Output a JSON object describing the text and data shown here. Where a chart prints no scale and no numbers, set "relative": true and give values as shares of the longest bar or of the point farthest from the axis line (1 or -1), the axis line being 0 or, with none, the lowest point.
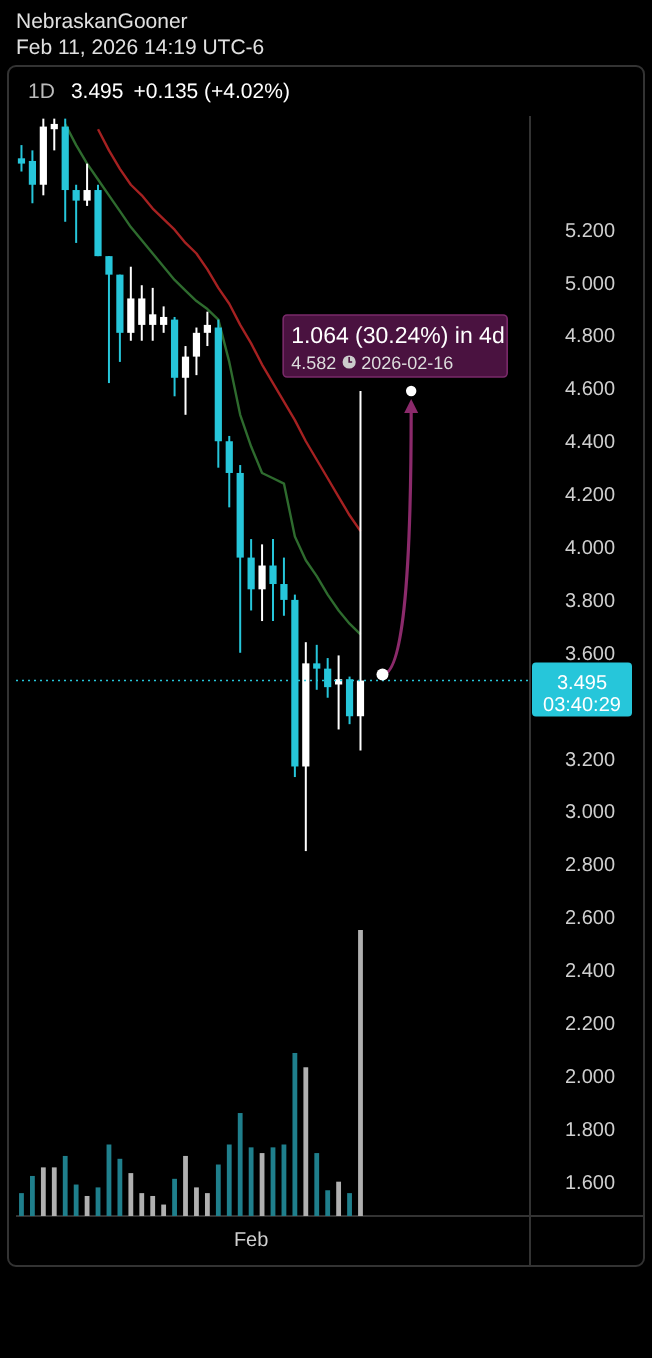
{
  "chart_data": [
    {
      "type": "candlestick",
      "title": "NebraskanGooner",
      "subtitle": "Feb 11, 2026 14:19 UTC-6",
      "categories": [
        null,
        null,
        null,
        null,
        null,
        null,
        null,
        null,
        null,
        null,
        null,
        null,
        null,
        null,
        null,
        null,
        null,
        null,
        null,
        null,
        null,
        "Feb",
        null,
        null,
        null,
        null,
        null,
        null,
        null,
        null,
        null,
        null,
        null,
        null,
        null,
        null,
        null,
        null,
        null,
        null,
        null,
        null,
        null,
        null,
        null,
        null,
        null
      ],
      "ohlc": [
        [
          5.47,
          5.52,
          5.42,
          5.45
        ],
        [
          5.46,
          5.5,
          5.3,
          5.37
        ],
        [
          5.37,
          5.62,
          5.33,
          5.59
        ],
        [
          5.58,
          5.62,
          5.5,
          5.6
        ],
        [
          5.59,
          5.62,
          5.23,
          5.35
        ],
        [
          5.35,
          5.37,
          5.15,
          5.31
        ],
        [
          5.31,
          5.45,
          5.29,
          5.35
        ],
        [
          5.35,
          5.37,
          5.1,
          5.1
        ],
        [
          5.1,
          5.1,
          4.62,
          5.03
        ],
        [
          5.03,
          5.03,
          4.7,
          4.81
        ],
        [
          4.81,
          5.06,
          4.78,
          4.94
        ],
        [
          4.84,
          4.99,
          4.78,
          4.94
        ],
        [
          4.84,
          4.98,
          4.78,
          4.88
        ],
        [
          4.84,
          4.91,
          4.81,
          4.87
        ],
        [
          4.86,
          4.87,
          4.57,
          4.64
        ],
        [
          4.64,
          4.76,
          4.5,
          4.72
        ],
        [
          4.72,
          4.83,
          4.65,
          4.81
        ],
        [
          4.81,
          4.89,
          4.76,
          4.84
        ],
        [
          4.83,
          4.86,
          4.3,
          4.4
        ],
        [
          4.4,
          4.42,
          4.15,
          4.28
        ],
        [
          4.28,
          4.31,
          3.6,
          3.96
        ],
        [
          3.96,
          4.03,
          3.76,
          3.84
        ],
        [
          3.84,
          4.01,
          3.72,
          3.93
        ],
        [
          3.93,
          4.03,
          3.72,
          3.86
        ],
        [
          3.86,
          3.96,
          3.74,
          3.8
        ],
        [
          3.8,
          3.82,
          3.13,
          3.17
        ],
        [
          3.17,
          3.64,
          2.85,
          3.56
        ],
        [
          3.56,
          3.63,
          3.46,
          3.54
        ],
        [
          3.54,
          3.58,
          3.43,
          3.47
        ],
        [
          3.48,
          3.59,
          3.31,
          3.5
        ],
        [
          3.5,
          3.51,
          3.33,
          3.36
        ],
        [
          3.36,
          4.59,
          3.23,
          3.495
        ],
        null,
        null,
        null,
        null,
        null,
        null,
        null,
        null,
        null,
        null,
        null,
        null,
        null,
        null,
        null
      ],
      "colors": [
        "#26c6da",
        "#26c6da",
        "#ffffff",
        "#ffffff",
        "#26c6da",
        "#26c6da",
        "#ffffff",
        "#26c6da",
        "#26c6da",
        "#26c6da",
        "#ffffff",
        "#ffffff",
        "#ffffff",
        "#ffffff",
        "#26c6da",
        "#ffffff",
        "#ffffff",
        "#ffffff",
        "#26c6da",
        "#26c6da",
        "#26c6da",
        "#26c6da",
        "#ffffff",
        "#26c6da",
        "#26c6da",
        "#26c6da",
        "#ffffff",
        "#26c6da",
        "#26c6da",
        "#ffffff",
        "#26c6da",
        "#ffffff",
        null,
        null,
        null,
        null,
        null,
        null,
        null,
        null,
        null,
        null,
        null,
        null,
        null,
        null,
        null
      ],
      "series": [
        {
          "type": "line",
          "color": "#2e6b2e",
          "values": [
            null,
            null,
            null,
            null,
            5.6,
            5.52,
            5.45,
            5.39,
            5.33,
            5.27,
            5.21,
            5.16,
            5.11,
            5.06,
            5.01,
            4.97,
            4.93,
            4.9,
            4.86,
            4.7,
            4.5,
            4.38,
            4.28,
            4.26,
            4.24,
            4.04,
            3.95,
            3.89,
            3.82,
            3.76,
            3.71,
            3.67,
            null,
            null,
            null,
            null,
            null,
            null,
            null,
            null,
            null,
            null,
            null,
            null,
            null,
            null,
            null
          ]
        },
        {
          "type": "line",
          "color": "#a52121",
          "values": [
            null,
            null,
            null,
            null,
            null,
            null,
            null,
            5.58,
            5.5,
            5.43,
            5.37,
            5.33,
            5.28,
            5.24,
            5.2,
            5.15,
            5.11,
            5.05,
            4.98,
            4.92,
            4.84,
            4.77,
            4.69,
            4.62,
            4.55,
            4.48,
            4.4,
            4.33,
            4.26,
            4.19,
            4.12,
            4.06,
            null,
            null,
            null,
            null,
            null,
            null,
            null,
            null,
            null,
            null,
            null,
            null,
            null,
            null,
            null
          ]
        }
      ],
      "ylim": [
        1.47,
        5.63
      ],
      "yticks": [
        {
          "value": 1.6,
          "label": "1.600"
        },
        {
          "value": 1.8,
          "label": "1.800"
        },
        {
          "value": 2,
          "label": "2.000"
        },
        {
          "value": 2.2,
          "label": "2.200"
        },
        {
          "value": 2.4,
          "label": "2.400"
        },
        {
          "value": 2.6,
          "label": "2.600"
        },
        {
          "value": 2.8,
          "label": "2.800"
        },
        {
          "value": 3,
          "label": "3.000"
        },
        {
          "value": 3.2,
          "label": "3.200"
        },
        {
          "value": 3.6,
          "label": "3.600"
        },
        {
          "value": 3.8,
          "label": "3.800"
        },
        {
          "value": 4,
          "label": "4.000"
        },
        {
          "value": 4.2,
          "label": "4.200"
        },
        {
          "value": 4.4,
          "label": "4.400"
        },
        {
          "value": 4.6,
          "label": "4.600"
        },
        {
          "value": 4.8,
          "label": "4.800"
        },
        {
          "value": 5,
          "label": "5.000"
        },
        {
          "value": 5.2,
          "label": "5.200"
        }
      ],
      "ref_lines": [
        {
          "axis": "y",
          "value": 3.495,
          "label": "3.495",
          "color": "#26c6da",
          "line_style": "dotted"
        }
      ],
      "annotations": [
        "1D",
        "3.495",
        "+0.135 (+4.02%)",
        "1.064 (30.24%) in 4d",
        "4.582",
        "2026-02-16",
        "03:40:29"
      ]
    },
    {
      "type": "bar",
      "relative": true,
      "categories": [
        null,
        null,
        null,
        null,
        null,
        null,
        null,
        null,
        null,
        null,
        null,
        null,
        null,
        null,
        null,
        null,
        null,
        null,
        null,
        null,
        null,
        null,
        null,
        null,
        null,
        null,
        null,
        null,
        null,
        null,
        null,
        null,
        null,
        null,
        null,
        null,
        null,
        null,
        null,
        null,
        null,
        null,
        null,
        null,
        null,
        null,
        null
      ],
      "values": [
        0.08,
        0.14,
        0.17,
        0.17,
        0.21,
        0.11,
        0.07,
        0.1,
        0.25,
        0.2,
        0.15,
        0.08,
        0.07,
        0.04,
        0.13,
        0.21,
        0.1,
        0.08,
        0.18,
        0.25,
        0.36,
        0.24,
        0.22,
        0.24,
        0.25,
        0.57,
        0.52,
        0.22,
        0.09,
        0.12,
        0.08,
        1,
        null,
        null,
        null,
        null,
        null,
        null,
        null,
        null,
        null,
        null,
        null,
        null,
        null,
        null,
        null
      ],
      "colors": [
        "#1f7f8c",
        "#1f7f8c",
        "#b0b0b0",
        "#b0b0b0",
        "#1f7f8c",
        "#1f7f8c",
        "#b0b0b0",
        "#1f7f8c",
        "#1f7f8c",
        "#1f7f8c",
        "#b0b0b0",
        "#b0b0b0",
        "#b0b0b0",
        "#b0b0b0",
        "#1f7f8c",
        "#b0b0b0",
        "#b0b0b0",
        "#b0b0b0",
        "#1f7f8c",
        "#1f7f8c",
        "#1f7f8c",
        "#1f7f8c",
        "#b0b0b0",
        "#1f7f8c",
        "#1f7f8c",
        "#1f7f8c",
        "#b0b0b0",
        "#1f7f8c",
        "#1f7f8c",
        "#b0b0b0",
        "#1f7f8c",
        "#b0b0b0",
        null,
        null,
        null,
        null,
        null,
        null,
        null,
        null,
        null,
        null,
        null,
        null,
        null,
        null,
        null
      ]
    }
  ]
}
